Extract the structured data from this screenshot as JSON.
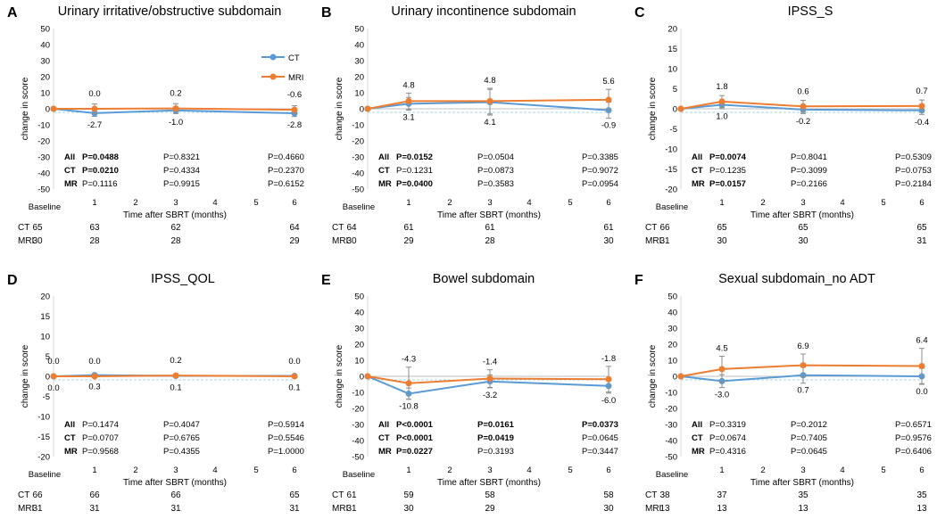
{
  "legend": {
    "ct": "CT",
    "mri": "MRI"
  },
  "colors": {
    "ct": "#5b9bd5",
    "mri": "#ed7d31",
    "error": "#8c8c8c",
    "zero": "#bfbfbf",
    "baseline": "#a6d5e8"
  },
  "common": {
    "ylabel": "change in score",
    "xlabel": "Time after SBRT (months)",
    "baseline_label": "Baseline",
    "x_ticks": [
      "1",
      "2",
      "3",
      "4",
      "5",
      "6"
    ],
    "p_row_labels": [
      "All",
      "CT",
      "MR"
    ],
    "n_row_labels": [
      "CT",
      "MRI"
    ]
  },
  "chart_data": [
    {
      "letter": "A",
      "type": "line",
      "title": "Urinary irritative/obstructive subdomain",
      "ylim": [
        -50,
        50
      ],
      "yticks": [
        "50",
        "40",
        "30",
        "20",
        "10",
        "0",
        "-10",
        "-20",
        "-30",
        "-40",
        "-50"
      ],
      "x_months": [
        0,
        1,
        3,
        6
      ],
      "series": [
        {
          "name": "CT",
          "values": [
            0,
            -2.7,
            -1.0,
            -2.8
          ],
          "errors": [
            0,
            2.0,
            2.0,
            2.0
          ]
        },
        {
          "name": "MRI",
          "values": [
            0,
            0.0,
            0.2,
            -0.6
          ],
          "errors": [
            0,
            3.0,
            3.0,
            2.5
          ]
        }
      ],
      "labels_ct": [
        "-2.7",
        "-1.0",
        "-2.8"
      ],
      "labels_mri": [
        "0.0",
        "0.2",
        "-0.6"
      ],
      "pvalues": [
        {
          "group": "All",
          "values": [
            {
              "text": "P=0.0488",
              "bold": true
            },
            {
              "text": "P=0.8321",
              "bold": false
            },
            {
              "text": "P=0.4660",
              "bold": false
            }
          ]
        },
        {
          "group": "CT",
          "values": [
            {
              "text": "P=0.0210",
              "bold": true
            },
            {
              "text": "P=0.4334",
              "bold": false
            },
            {
              "text": "P=0.2370",
              "bold": false
            }
          ]
        },
        {
          "group": "MR",
          "values": [
            {
              "text": "P=0.1116",
              "bold": false
            },
            {
              "text": "P=0.9915",
              "bold": false
            },
            {
              "text": "P=0.6152",
              "bold": false
            }
          ]
        }
      ],
      "n_at_risk": {
        "CT": [
          "65",
          "63",
          "62",
          "64"
        ],
        "MRI": [
          "30",
          "28",
          "28",
          "29"
        ]
      },
      "show_legend": true
    },
    {
      "letter": "B",
      "type": "line",
      "title": "Urinary incontinence subdomain",
      "ylim": [
        -50,
        50
      ],
      "yticks": [
        "50",
        "40",
        "30",
        "20",
        "10",
        "0",
        "-10",
        "-20",
        "-30",
        "-40",
        "-50"
      ],
      "x_months": [
        0,
        1,
        3,
        6
      ],
      "series": [
        {
          "name": "CT",
          "values": [
            0,
            3.1,
            4.1,
            -0.9
          ],
          "errors": [
            0,
            4.0,
            8.0,
            5.0
          ]
        },
        {
          "name": "MRI",
          "values": [
            0,
            4.8,
            4.8,
            5.6
          ],
          "errors": [
            0,
            5.0,
            8.0,
            6.5
          ]
        }
      ],
      "labels_ct": [
        "3.1",
        "4.1",
        "-0.9"
      ],
      "labels_mri": [
        "4.8",
        "4.8",
        "5.6"
      ],
      "pvalues": [
        {
          "group": "All",
          "values": [
            {
              "text": "P=0.0152",
              "bold": true
            },
            {
              "text": "P=0.0504",
              "bold": false
            },
            {
              "text": "P=0.3385",
              "bold": false
            }
          ]
        },
        {
          "group": "CT",
          "values": [
            {
              "text": "P=0.1231",
              "bold": false
            },
            {
              "text": "P=0.0873",
              "bold": false
            },
            {
              "text": "P=0.9072",
              "bold": false
            }
          ]
        },
        {
          "group": "MR",
          "values": [
            {
              "text": "P=0.0400",
              "bold": true
            },
            {
              "text": "P=0.3583",
              "bold": false
            },
            {
              "text": "P=0.0954",
              "bold": false
            }
          ]
        }
      ],
      "n_at_risk": {
        "CT": [
          "64",
          "61",
          "61",
          "61"
        ],
        "MRI": [
          "30",
          "29",
          "28",
          "30"
        ]
      },
      "show_legend": false
    },
    {
      "letter": "C",
      "type": "line",
      "title": "IPSS_S",
      "ylim": [
        -20,
        20
      ],
      "yticks": [
        "20",
        "15",
        "10",
        "5",
        "0",
        "-5",
        "-10",
        "-15",
        "-20"
      ],
      "x_months": [
        0,
        1,
        3,
        6
      ],
      "series": [
        {
          "name": "CT",
          "values": [
            0,
            1.0,
            -0.2,
            -0.4
          ],
          "errors": [
            0,
            1.0,
            1.0,
            1.0
          ]
        },
        {
          "name": "MRI",
          "values": [
            0,
            1.8,
            0.6,
            0.7
          ],
          "errors": [
            0,
            1.5,
            1.5,
            1.5
          ]
        }
      ],
      "labels_ct": [
        "1.0",
        "-0.2",
        "-0.4"
      ],
      "labels_mri": [
        "1.8",
        "0.6",
        "0.7"
      ],
      "pvalues": [
        {
          "group": "All",
          "values": [
            {
              "text": "P=0.0074",
              "bold": true
            },
            {
              "text": "P=0.8041",
              "bold": false
            },
            {
              "text": "P=0.5309",
              "bold": false
            }
          ]
        },
        {
          "group": "CT",
          "values": [
            {
              "text": "P=0.1235",
              "bold": false
            },
            {
              "text": "P=0.3099",
              "bold": false
            },
            {
              "text": "P=0.0753",
              "bold": false
            }
          ]
        },
        {
          "group": "MR",
          "values": [
            {
              "text": "P=0.0157",
              "bold": true
            },
            {
              "text": "P=0.2166",
              "bold": false
            },
            {
              "text": "P=0.2184",
              "bold": false
            }
          ]
        }
      ],
      "n_at_risk": {
        "CT": [
          "66",
          "65",
          "65",
          "65"
        ],
        "MRI": [
          "31",
          "30",
          "30",
          "31"
        ]
      },
      "show_legend": false
    },
    {
      "letter": "D",
      "type": "line",
      "title": "IPSS_QOL",
      "ylim": [
        -20,
        20
      ],
      "yticks": [
        "20",
        "15",
        "10",
        "5",
        "0",
        "-5",
        "-10",
        "-15",
        "-20"
      ],
      "x_months": [
        0,
        1,
        3,
        6
      ],
      "series": [
        {
          "name": "CT",
          "values": [
            0,
            0.3,
            0.1,
            0.1
          ],
          "errors": [
            0,
            0.3,
            0.3,
            0.3
          ]
        },
        {
          "name": "MRI",
          "values": [
            0,
            0.0,
            0.2,
            0.0
          ],
          "errors": [
            0,
            0.3,
            0.3,
            0.3
          ]
        }
      ],
      "labels_ct": [
        "0.0",
        "0.3",
        "0.1",
        "0.1"
      ],
      "labels_mri": [
        "0.0",
        "0.0",
        "0.2",
        "0.0"
      ],
      "pvalues": [
        {
          "group": "All",
          "values": [
            {
              "text": "P=0.1474",
              "bold": false
            },
            {
              "text": "P=0.4047",
              "bold": false
            },
            {
              "text": "P=0.5914",
              "bold": false
            }
          ]
        },
        {
          "group": "CT",
          "values": [
            {
              "text": "P=0.0707",
              "bold": false
            },
            {
              "text": "P=0.6765",
              "bold": false
            },
            {
              "text": "P=0.5546",
              "bold": false
            }
          ]
        },
        {
          "group": "MR",
          "values": [
            {
              "text": "P=0.9568",
              "bold": false
            },
            {
              "text": "P=0.4355",
              "bold": false
            },
            {
              "text": "P=1.0000",
              "bold": false
            }
          ]
        }
      ],
      "n_at_risk": {
        "CT": [
          "66",
          "66",
          "66",
          "65"
        ],
        "MRI": [
          "31",
          "31",
          "31",
          "31"
        ]
      },
      "show_legend": false
    },
    {
      "letter": "E",
      "type": "line",
      "title": "Bowel subdomain",
      "ylim": [
        -50,
        50
      ],
      "yticks": [
        "50",
        "40",
        "30",
        "20",
        "10",
        "0",
        "-10",
        "-20",
        "-30",
        "-40",
        "-50"
      ],
      "x_months": [
        0,
        1,
        3,
        6
      ],
      "series": [
        {
          "name": "CT",
          "values": [
            0,
            -10.8,
            -3.2,
            -6.0
          ],
          "errors": [
            0,
            3.5,
            4.0,
            4.5
          ]
        },
        {
          "name": "MRI",
          "values": [
            0,
            -4.3,
            -1.4,
            -1.8
          ],
          "errors": [
            0,
            10.0,
            5.5,
            8.0
          ]
        }
      ],
      "labels_ct": [
        "-10.8",
        "-3.2",
        "-6.0"
      ],
      "labels_mri": [
        "-4.3",
        "-1.4",
        "-1.8"
      ],
      "pvalues": [
        {
          "group": "All",
          "values": [
            {
              "text": "P<0.0001",
              "bold": true
            },
            {
              "text": "P=0.0161",
              "bold": true
            },
            {
              "text": "P=0.0373",
              "bold": true
            }
          ]
        },
        {
          "group": "CT",
          "values": [
            {
              "text": "P<0.0001",
              "bold": true
            },
            {
              "text": "P=0.0419",
              "bold": true
            },
            {
              "text": "P=0.0645",
              "bold": false
            }
          ]
        },
        {
          "group": "MR",
          "values": [
            {
              "text": "P=0.0227",
              "bold": true
            },
            {
              "text": "P=0.3193",
              "bold": false
            },
            {
              "text": "P=0.3447",
              "bold": false
            }
          ]
        }
      ],
      "n_at_risk": {
        "CT": [
          "61",
          "59",
          "58",
          "58"
        ],
        "MRI": [
          "31",
          "30",
          "29",
          "30"
        ]
      },
      "show_legend": false
    },
    {
      "letter": "F",
      "type": "line",
      "title": "Sexual subdomain_no ADT",
      "ylim": [
        -50,
        50
      ],
      "yticks": [
        "50",
        "40",
        "30",
        "20",
        "10",
        "0",
        "-10",
        "-20",
        "-30",
        "-40",
        "-50"
      ],
      "x_months": [
        0,
        1,
        3,
        6
      ],
      "series": [
        {
          "name": "CT",
          "values": [
            0,
            -3.0,
            0.7,
            0.0
          ],
          "errors": [
            0,
            4.0,
            5.0,
            5.0
          ]
        },
        {
          "name": "MRI",
          "values": [
            0,
            4.5,
            6.9,
            6.4
          ],
          "errors": [
            0,
            8.0,
            7.0,
            11.0
          ]
        }
      ],
      "labels_ct": [
        "-3.0",
        "0.7",
        "0.0"
      ],
      "labels_mri": [
        "4.5",
        "6.9",
        "6.4"
      ],
      "pvalues": [
        {
          "group": "All",
          "values": [
            {
              "text": "P=0.3319",
              "bold": false
            },
            {
              "text": "P=0.2012",
              "bold": false
            },
            {
              "text": "P=0.6571",
              "bold": false
            }
          ]
        },
        {
          "group": "CT",
          "values": [
            {
              "text": "P=0.0674",
              "bold": false
            },
            {
              "text": "P=0.7405",
              "bold": false
            },
            {
              "text": "P=0.9576",
              "bold": false
            }
          ]
        },
        {
          "group": "MR",
          "values": [
            {
              "text": "P=0.4316",
              "bold": false
            },
            {
              "text": "P=0.0645",
              "bold": false
            },
            {
              "text": "P=0.6406",
              "bold": false
            }
          ]
        }
      ],
      "n_at_risk": {
        "CT": [
          "38",
          "37",
          "35",
          "35"
        ],
        "MRI": [
          "13",
          "13",
          "13",
          "13"
        ]
      },
      "show_legend": false
    }
  ]
}
